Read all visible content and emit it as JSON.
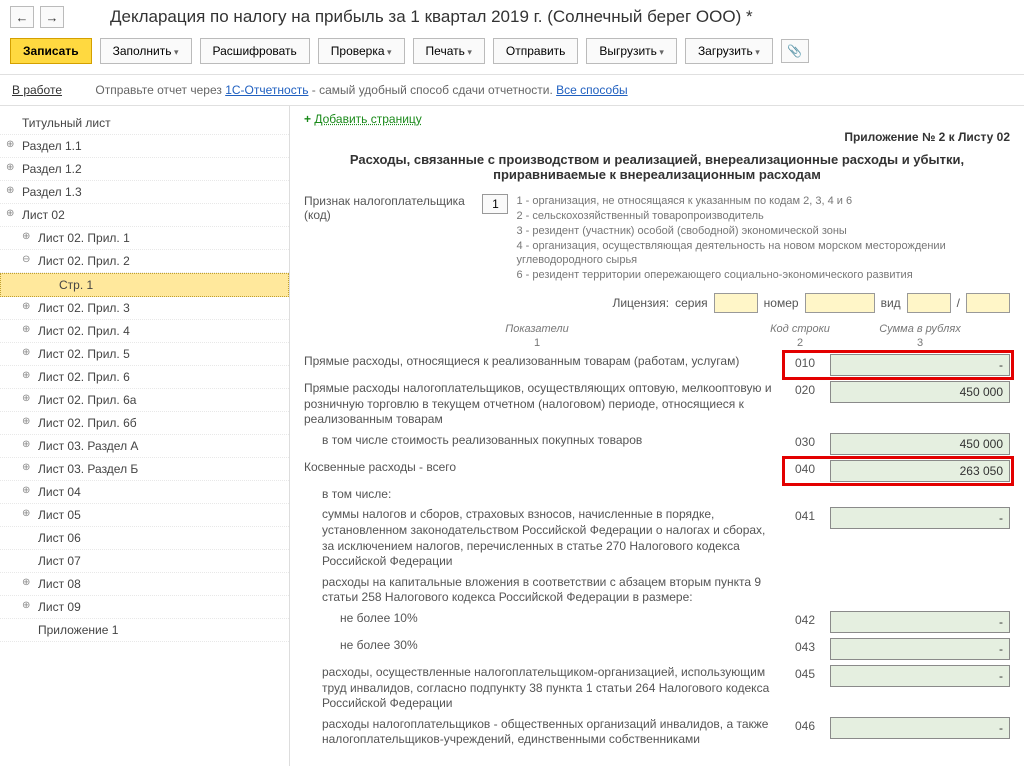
{
  "title": "Декларация по налогу на прибыль за 1 квартал 2019 г. (Солнечный берег ООО) *",
  "toolbar": {
    "save": "Записать",
    "fill": "Заполнить",
    "decode": "Расшифровать",
    "check": "Проверка",
    "print": "Печать",
    "send": "Отправить",
    "export": "Выгрузить",
    "load": "Загрузить"
  },
  "status": {
    "label": "В работе",
    "text1": "Отправьте отчет через ",
    "link1": "1С-Отчетность",
    "text2": " - самый удобный способ сдачи отчетности. ",
    "link2": "Все способы"
  },
  "tree": {
    "items": [
      {
        "label": "Титульный лист",
        "indent": 0,
        "exp": null
      },
      {
        "label": "Раздел 1.1",
        "indent": 0,
        "exp": "⊕"
      },
      {
        "label": "Раздел 1.2",
        "indent": 0,
        "exp": "⊕"
      },
      {
        "label": "Раздел 1.3",
        "indent": 0,
        "exp": "⊕"
      },
      {
        "label": "Лист 02",
        "indent": 0,
        "exp": "⊕"
      },
      {
        "label": "Лист 02. Прил. 1",
        "indent": 1,
        "exp": "⊕"
      },
      {
        "label": "Лист 02. Прил. 2",
        "indent": 1,
        "exp": "⊖"
      },
      {
        "label": "Стр. 1",
        "indent": 2,
        "exp": null,
        "selected": true
      },
      {
        "label": "Лист 02. Прил. 3",
        "indent": 1,
        "exp": "⊕"
      },
      {
        "label": "Лист 02. Прил. 4",
        "indent": 1,
        "exp": "⊕"
      },
      {
        "label": "Лист 02. Прил. 5",
        "indent": 1,
        "exp": "⊕"
      },
      {
        "label": "Лист 02. Прил. 6",
        "indent": 1,
        "exp": "⊕"
      },
      {
        "label": "Лист 02. Прил. 6а",
        "indent": 1,
        "exp": "⊕"
      },
      {
        "label": "Лист 02. Прил. 6б",
        "indent": 1,
        "exp": "⊕"
      },
      {
        "label": "Лист 03. Раздел А",
        "indent": 1,
        "exp": "⊕"
      },
      {
        "label": "Лист 03. Раздел Б",
        "indent": 1,
        "exp": "⊕"
      },
      {
        "label": "Лист 04",
        "indent": 1,
        "exp": "⊕"
      },
      {
        "label": "Лист 05",
        "indent": 1,
        "exp": "⊕"
      },
      {
        "label": "Лист 06",
        "indent": 1,
        "exp": ""
      },
      {
        "label": "Лист 07",
        "indent": 1,
        "exp": ""
      },
      {
        "label": "Лист 08",
        "indent": 1,
        "exp": "⊕"
      },
      {
        "label": "Лист 09",
        "indent": 1,
        "exp": "⊕"
      },
      {
        "label": "Приложение 1",
        "indent": 1,
        "exp": ""
      }
    ]
  },
  "content": {
    "add_page": "Добавить страницу",
    "appendix_title": "Приложение № 2 к Листу 02",
    "section_title": "Расходы, связанные с производством и реализацией, внереализационные расходы и убытки, приравниваемые к внереализационным расходам",
    "taxpayer_label": "Признак налогоплательщика (код)",
    "taxpayer_code": "1",
    "taxpayer_codes": [
      "1 - организация, не относящаяся к указанным по кодам 2, 3, 4 и 6",
      "2 - сельскохозяйственный товаропроизводитель",
      "3 - резидент (участник) особой (свободной) экономической зоны",
      "4 - организация, осуществляющая деятельность на новом морском месторождении углеводородного сырья",
      "6 - резидент территории опережающего социально-экономического развития"
    ],
    "license": {
      "label": "Лицензия:",
      "series": "серия",
      "number": "номер",
      "type": "вид",
      "slash": "/"
    },
    "head": {
      "ind": "Показатели",
      "ind2": "1",
      "code": "Код строки",
      "code2": "2",
      "sum": "Сумма в рублях",
      "sum2": "3"
    },
    "rows": [
      {
        "label": "Прямые расходы, относящиеся к реализованным товарам (работам, услугам)",
        "code": "010",
        "value": "-",
        "hl": true
      },
      {
        "label": "Прямые расходы налогоплательщиков, осуществляющих оптовую, мелкооптовую и розничную торговлю в текущем отчетном (налоговом) периоде, относящиеся к реализованным товарам",
        "code": "020",
        "value": "450 000"
      },
      {
        "label": "в том числе стоимость реализованных покупных товаров",
        "code": "030",
        "value": "450 000",
        "sub": true
      },
      {
        "label": "Косвенные расходы - всего",
        "code": "040",
        "value": "263 050",
        "hl": true
      },
      {
        "label": "в том числе:",
        "code": "",
        "value": null,
        "sub": true
      },
      {
        "label": "суммы налогов и сборов, страховых взносов, начисленные в порядке, установленном законодательством Российской Федерации о налогах и сборах, за исключением налогов, перечисленных в статье 270 Налогового кодекса Российской Федерации",
        "code": "041",
        "value": "-",
        "sub": true
      },
      {
        "label": "расходы на капитальные вложения в соответствии с абзацем вторым пункта 9 статьи 258 Налогового кодекса Российской Федерации в размере:",
        "code": "",
        "value": null,
        "sub": true
      },
      {
        "label": "не более 10%",
        "code": "042",
        "value": "-",
        "sub": true,
        "sub2": true
      },
      {
        "label": "не более 30%",
        "code": "043",
        "value": "-",
        "sub": true,
        "sub2": true
      },
      {
        "label": "расходы, осуществленные налогоплательщиком-организацией, использующим труд инвалидов, согласно подпункту 38 пункта 1 статьи 264 Налогового кодекса Российской Федерации",
        "code": "045",
        "value": "-",
        "sub": true
      },
      {
        "label": "расходы налогоплательщиков - общественных организаций инвалидов, а также налогоплательщиков-учреждений, единственными собственниками",
        "code": "046",
        "value": "-",
        "sub": true
      }
    ]
  }
}
